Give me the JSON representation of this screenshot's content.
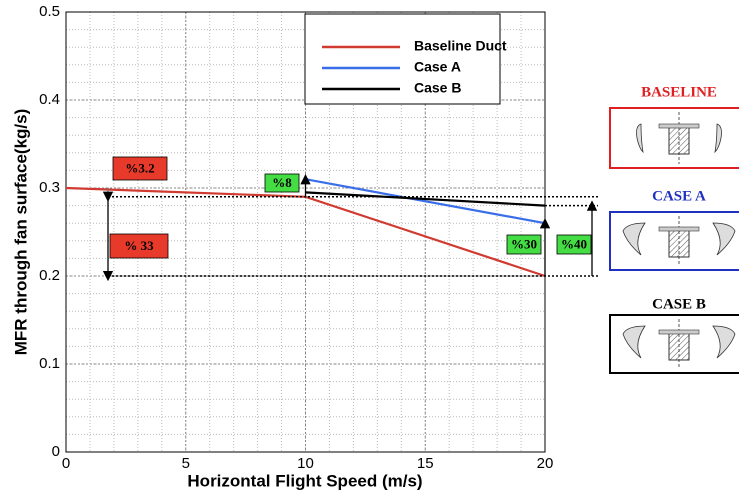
{
  "chart_data": {
    "type": "line",
    "xlabel": "Horizontal Flight Speed (m/s)",
    "ylabel": "MFR through fan surface(kg/s)",
    "x": [
      0,
      10,
      20
    ],
    "series": [
      {
        "name": "Baseline Duct",
        "color": "#d03a30",
        "values": [
          0.3,
          0.29,
          0.2
        ]
      },
      {
        "name": "Case A",
        "color": "#3a6ee8",
        "values": [
          null,
          0.31,
          0.26
        ]
      },
      {
        "name": "Case B",
        "color": "#000000",
        "values": [
          null,
          0.295,
          0.28
        ]
      }
    ],
    "xlim": [
      0,
      20
    ],
    "xticks": [
      0,
      5,
      10,
      15,
      20
    ],
    "ylim": [
      0,
      0.5
    ],
    "yticks": [
      0,
      0.1,
      0.2,
      0.3,
      0.4,
      0.5
    ],
    "grid": true,
    "legend_position": "top-right",
    "annotations": [
      {
        "text": "%3.2",
        "color": "#e83a2a"
      },
      {
        "text": "% 33",
        "color": "#e83a2a"
      },
      {
        "text": "%8",
        "color": "#44dd44"
      },
      {
        "text": "%30",
        "color": "#44dd44"
      },
      {
        "text": "%40",
        "color": "#44dd44"
      }
    ],
    "side_labels": [
      {
        "text": "BASELINE",
        "color": "#e02020"
      },
      {
        "text": "CASE A",
        "color": "#2030c0"
      },
      {
        "text": "CASE B",
        "color": "#000000"
      }
    ]
  }
}
